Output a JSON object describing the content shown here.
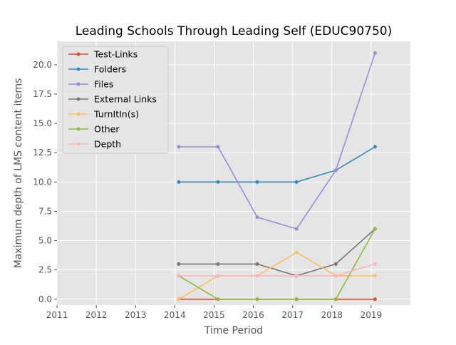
{
  "chart_data": {
    "type": "line",
    "title": "Leading Schools Through Leading Self (EDUC90750)",
    "xlabel": "Time Period",
    "ylabel": "Maximum depth of LMS content items",
    "xlim": [
      2011,
      2020
    ],
    "ylim": [
      -0.5,
      22.0
    ],
    "x_ticks": [
      "2011",
      "2012",
      "2013",
      "2014",
      "2015",
      "2016",
      "2017",
      "2018",
      "2019"
    ],
    "y_ticks": [
      "0.0",
      "2.5",
      "5.0",
      "7.5",
      "10.0",
      "12.5",
      "15.0",
      "17.5",
      "20.0"
    ],
    "grid": true,
    "legend_position": "upper-left",
    "x": [
      2014.1,
      2015.1,
      2016.1,
      2017.1,
      2018.1,
      2019.1
    ],
    "series": [
      {
        "name": "Test-Links",
        "color": "#E24A33",
        "values": [
          0,
          0,
          0,
          0,
          0,
          0
        ]
      },
      {
        "name": "Folders",
        "color": "#348ABD",
        "values": [
          10,
          10,
          10,
          10,
          11,
          13
        ]
      },
      {
        "name": "Files",
        "color": "#988ED5",
        "values": [
          13,
          13,
          7,
          6,
          11,
          21
        ]
      },
      {
        "name": "External Links",
        "color": "#777777",
        "values": [
          3,
          3,
          3,
          2,
          3,
          6
        ]
      },
      {
        "name": "TurnItIn(s)",
        "color": "#FBC15E",
        "values": [
          0,
          2,
          2,
          4,
          2,
          2
        ]
      },
      {
        "name": "Other",
        "color": "#8EBA42",
        "values": [
          2,
          0,
          0,
          0,
          0,
          6
        ]
      },
      {
        "name": "Depth",
        "color": "#FFB5B8",
        "values": [
          2,
          2,
          2,
          2,
          2,
          3
        ]
      }
    ]
  }
}
